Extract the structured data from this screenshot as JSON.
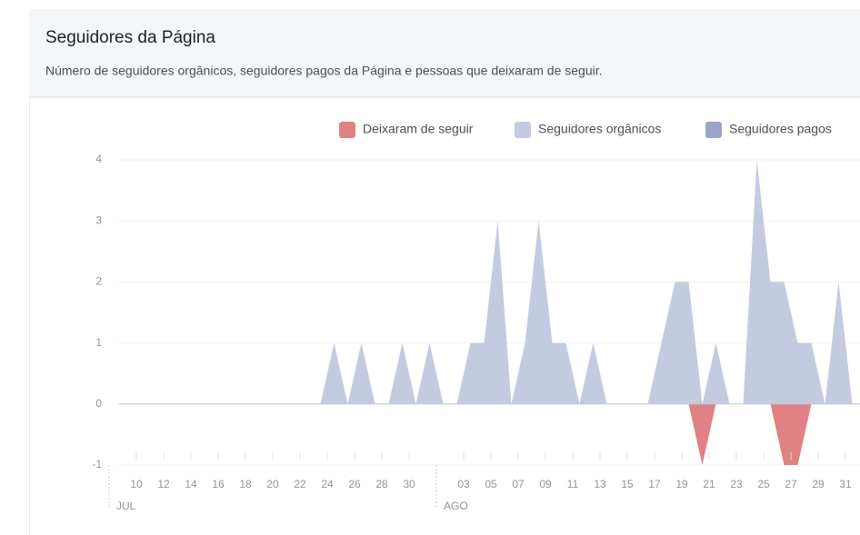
{
  "chart_data": {
    "type": "area",
    "title": "Seguidores da Página",
    "subtitle": "Número de seguidores orgânicos, seguidores pagos da Página e pessoas que deixaram de seguir.",
    "categories": [
      null,
      "10",
      null,
      "12",
      null,
      "14",
      null,
      "16",
      null,
      "18",
      null,
      "20",
      null,
      "22",
      null,
      "24",
      null,
      "26",
      null,
      "28",
      null,
      "30",
      null,
      null,
      null,
      "03",
      null,
      "05",
      null,
      "07",
      null,
      "09",
      null,
      "11",
      null,
      "13",
      null,
      "15",
      null,
      "17",
      null,
      "19",
      null,
      "21",
      null,
      "23",
      null,
      "25",
      null,
      "27",
      null,
      "29",
      null,
      "31"
    ],
    "months": [
      {
        "label": "JUL",
        "start": 0
      },
      {
        "label": "AGO",
        "start": 23
      }
    ],
    "series": [
      {
        "name": "Seguidores orgânicos",
        "color": "#c4cbe0",
        "values": [
          0,
          0,
          0,
          0,
          0,
          0,
          0,
          0,
          0,
          0,
          0,
          0,
          0,
          0,
          0,
          1,
          0,
          1,
          0,
          0,
          1,
          0,
          1,
          0,
          0,
          1,
          1,
          3,
          0,
          1,
          3,
          1,
          1,
          0,
          1,
          0,
          0,
          0,
          0,
          1,
          2,
          2,
          0,
          1,
          0,
          0,
          4,
          2,
          2,
          1,
          1,
          0,
          2,
          0
        ]
      },
      {
        "name": "Seguidores pagos",
        "color": "#98a6ca",
        "values": [
          0,
          0,
          0,
          0,
          0,
          0,
          0,
          0,
          0,
          0,
          0,
          0,
          0,
          0,
          0,
          0,
          0,
          0,
          0,
          0,
          0,
          0,
          0,
          0,
          0,
          0,
          0,
          0,
          0,
          0,
          0,
          0,
          0,
          0,
          0,
          0,
          0,
          0,
          0,
          0,
          0,
          0,
          0,
          0,
          0,
          0,
          0,
          0,
          0,
          0,
          0,
          0,
          0,
          0
        ]
      },
      {
        "name": "Deixaram de seguir",
        "color": "#e08283",
        "values": [
          0,
          0,
          0,
          0,
          0,
          0,
          0,
          0,
          0,
          0,
          0,
          0,
          0,
          0,
          0,
          0,
          0,
          0,
          0,
          0,
          0,
          0,
          0,
          0,
          0,
          0,
          0,
          0,
          0,
          0,
          0,
          0,
          0,
          0,
          0,
          0,
          0,
          0,
          0,
          0,
          0,
          0,
          -1,
          0,
          0,
          0,
          0,
          0,
          -1,
          -1,
          0,
          0,
          0,
          0
        ]
      }
    ],
    "legend_order": [
      2,
      0,
      1
    ],
    "ylim": [
      -1,
      4
    ],
    "yticks": [
      -1,
      0,
      1,
      2,
      3,
      4
    ],
    "grid": true
  }
}
